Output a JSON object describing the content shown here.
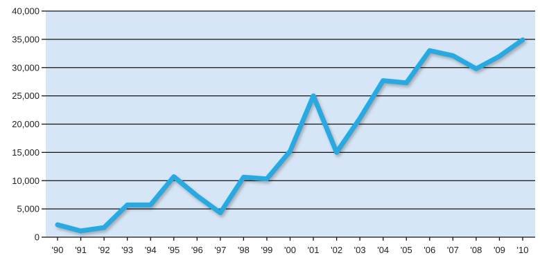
{
  "chart_data": {
    "type": "line",
    "title": "",
    "xlabel": "",
    "ylabel": "",
    "x": [
      "'90",
      "'91",
      "'92",
      "'93",
      "'94",
      "'95",
      "'96",
      "'97",
      "'98",
      "'99",
      "'00",
      "'01",
      "'02",
      "'03",
      "'04",
      "'05",
      "'06",
      "'07",
      "'08",
      "'09",
      "'10"
    ],
    "y_ticks": [
      "0",
      "5,000",
      "10,000",
      "15,000",
      "20,000",
      "25,000",
      "30,000",
      "35,000",
      "40,000"
    ],
    "ylim": [
      0,
      40000
    ],
    "grid": true,
    "series": [
      {
        "values": [
          2200,
          1100,
          1700,
          5700,
          5700,
          10700,
          7300,
          4300,
          10600,
          10300,
          15200,
          25000,
          15000,
          21000,
          27700,
          27300,
          33000,
          32100,
          29800,
          32000,
          34900
        ]
      }
    ],
    "colors": {
      "plot_background": "#d6e6f6",
      "line": "#29a8e0",
      "grid": "#111111"
    }
  }
}
